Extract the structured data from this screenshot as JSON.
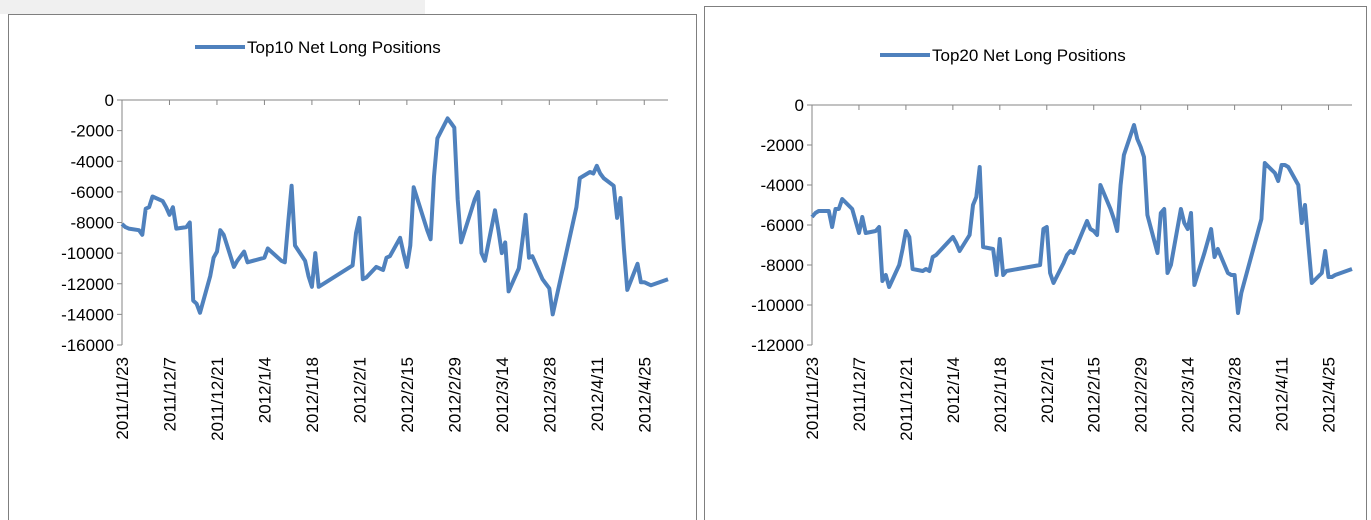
{
  "chart_data": [
    {
      "type": "line",
      "legend": "top",
      "x": [
        "2011/11/23",
        "2011/11/24",
        "2011/11/25",
        "2011/11/28",
        "2011/11/29",
        "2011/11/30",
        "2011/12/1",
        "2011/12/2",
        "2011/12/5",
        "2011/12/6",
        "2011/12/7",
        "2011/12/8",
        "2011/12/9",
        "2011/12/12",
        "2011/12/13",
        "2011/12/14",
        "2011/12/15",
        "2011/12/16",
        "2011/12/19",
        "2011/12/20",
        "2011/12/21",
        "2011/12/22",
        "2011/12/23",
        "2011/12/26",
        "2011/12/27",
        "2011/12/28",
        "2011/12/29",
        "2011/12/30",
        "2012/1/4",
        "2012/1/5",
        "2012/1/6",
        "2012/1/9",
        "2012/1/10",
        "2012/1/11",
        "2012/1/12",
        "2012/1/13",
        "2012/1/16",
        "2012/1/17",
        "2012/1/18",
        "2012/1/19",
        "2012/1/20",
        "2012/1/30",
        "2012/1/31",
        "2012/2/1",
        "2012/2/2",
        "2012/2/3",
        "2012/2/6",
        "2012/2/7",
        "2012/2/8",
        "2012/2/9",
        "2012/2/10",
        "2012/2/13",
        "2012/2/14",
        "2012/2/15",
        "2012/2/16",
        "2012/2/17",
        "2012/2/20",
        "2012/2/21",
        "2012/2/22",
        "2012/2/23",
        "2012/2/24",
        "2012/2/27",
        "2012/2/28",
        "2012/2/29",
        "2012/3/1",
        "2012/3/2",
        "2012/3/5",
        "2012/3/6",
        "2012/3/7",
        "2012/3/8",
        "2012/3/9",
        "2012/3/12",
        "2012/3/13",
        "2012/3/14",
        "2012/3/15",
        "2012/3/16",
        "2012/3/19",
        "2012/3/20",
        "2012/3/21",
        "2012/3/22",
        "2012/3/23",
        "2012/3/26",
        "2012/3/27",
        "2012/3/28",
        "2012/3/29",
        "2012/3/30",
        "2012/4/5",
        "2012/4/6",
        "2012/4/9",
        "2012/4/10",
        "2012/4/11",
        "2012/4/12",
        "2012/4/13",
        "2012/4/16",
        "2012/4/17",
        "2012/4/18",
        "2012/4/19",
        "2012/4/20",
        "2012/4/23",
        "2012/4/24",
        "2012/4/25",
        "2012/4/26",
        "2012/4/27",
        "2012/5/2"
      ],
      "series": [
        {
          "name": "Top10 Net Long Positions",
          "color": "#4f81bd",
          "values": [
            -8100,
            -8300,
            -8400,
            -8500,
            -8800,
            -7100,
            -7000,
            -6300,
            -6600,
            -7000,
            -7500,
            -7000,
            -8400,
            -8300,
            -8000,
            -13100,
            -13300,
            -13900,
            -11500,
            -10300,
            -9900,
            -8500,
            -8800,
            -10900,
            -10500,
            -10200,
            -9900,
            -10600,
            -10300,
            -9700,
            -9900,
            -10500,
            -10600,
            -8000,
            -5600,
            -9500,
            -10500,
            -11500,
            -12200,
            -10000,
            -12200,
            -10800,
            -8700,
            -7700,
            -11700,
            -11600,
            -10900,
            -11000,
            -11100,
            -10300,
            -10200,
            -9000,
            -10000,
            -10900,
            -9500,
            -5700,
            -7800,
            -8500,
            -9100,
            -5000,
            -2500,
            -1200,
            -1500,
            -1800,
            -6500,
            -9300,
            -7200,
            -6500,
            -6000,
            -10000,
            -10500,
            -7200,
            -8500,
            -10000,
            -9300,
            -12500,
            -11000,
            -9300,
            -7500,
            -10300,
            -10200,
            -11700,
            -12000,
            -12300,
            -14000,
            -13000,
            -7000,
            -5100,
            -4700,
            -4800,
            -4300,
            -4800,
            -5100,
            -5600,
            -7700,
            -6400,
            -9700,
            -12400,
            -10700,
            -11900,
            -11900,
            -12000,
            -12100,
            -11700
          ]
        }
      ],
      "xlim": [
        "2011/11/23",
        "2012/5/2"
      ],
      "xticks": [
        "2011/11/23",
        "2011/12/7",
        "2011/12/21",
        "2012/1/4",
        "2012/1/18",
        "2012/2/1",
        "2012/2/15",
        "2012/2/29",
        "2012/3/14",
        "2012/3/28",
        "2012/4/11",
        "2012/4/25"
      ],
      "ylim": [
        -16000,
        0
      ],
      "yticks": [
        0,
        -2000,
        -4000,
        -6000,
        -8000,
        -10000,
        -12000,
        -14000,
        -16000
      ]
    },
    {
      "type": "line",
      "legend": "top",
      "x": [
        "2011/11/23",
        "2011/11/24",
        "2011/11/25",
        "2011/11/28",
        "2011/11/29",
        "2011/11/30",
        "2011/12/1",
        "2011/12/2",
        "2011/12/5",
        "2011/12/6",
        "2011/12/7",
        "2011/12/8",
        "2011/12/9",
        "2011/12/12",
        "2011/12/13",
        "2011/12/14",
        "2011/12/15",
        "2011/12/16",
        "2011/12/19",
        "2011/12/20",
        "2011/12/21",
        "2011/12/22",
        "2011/12/23",
        "2011/12/26",
        "2011/12/27",
        "2011/12/28",
        "2011/12/29",
        "2011/12/30",
        "2012/1/4",
        "2012/1/5",
        "2012/1/6",
        "2012/1/9",
        "2012/1/10",
        "2012/1/11",
        "2012/1/12",
        "2012/1/13",
        "2012/1/16",
        "2012/1/17",
        "2012/1/18",
        "2012/1/19",
        "2012/1/20",
        "2012/1/30",
        "2012/1/31",
        "2012/2/1",
        "2012/2/2",
        "2012/2/3",
        "2012/2/6",
        "2012/2/7",
        "2012/2/8",
        "2012/2/9",
        "2012/2/10",
        "2012/2/13",
        "2012/2/14",
        "2012/2/15",
        "2012/2/16",
        "2012/2/17",
        "2012/2/20",
        "2012/2/21",
        "2012/2/22",
        "2012/2/23",
        "2012/2/24",
        "2012/2/27",
        "2012/2/28",
        "2012/2/29",
        "2012/3/1",
        "2012/3/2",
        "2012/3/5",
        "2012/3/6",
        "2012/3/7",
        "2012/3/8",
        "2012/3/9",
        "2012/3/12",
        "2012/3/13",
        "2012/3/14",
        "2012/3/15",
        "2012/3/16",
        "2012/3/19",
        "2012/3/20",
        "2012/3/21",
        "2012/3/22",
        "2012/3/23",
        "2012/3/26",
        "2012/3/27",
        "2012/3/28",
        "2012/3/29",
        "2012/3/30",
        "2012/4/5",
        "2012/4/6",
        "2012/4/9",
        "2012/4/10",
        "2012/4/11",
        "2012/4/12",
        "2012/4/13",
        "2012/4/16",
        "2012/4/17",
        "2012/4/18",
        "2012/4/19",
        "2012/4/20",
        "2012/4/23",
        "2012/4/24",
        "2012/4/25",
        "2012/4/26",
        "2012/4/27",
        "2012/5/2"
      ],
      "series": [
        {
          "name": "Top20 Net Long Positions",
          "color": "#4f81bd",
          "values": [
            -5600,
            -5400,
            -5300,
            -5300,
            -6100,
            -5200,
            -5200,
            -4700,
            -5200,
            -5800,
            -6400,
            -5600,
            -6400,
            -6300,
            -6100,
            -8800,
            -8500,
            -9100,
            -8000,
            -7200,
            -6300,
            -6600,
            -8200,
            -8300,
            -8200,
            -8300,
            -7600,
            -7500,
            -6600,
            -6900,
            -7300,
            -6500,
            -5000,
            -4600,
            -3100,
            -7100,
            -7200,
            -8500,
            -6700,
            -8500,
            -8300,
            -8000,
            -6200,
            -6100,
            -8400,
            -8900,
            -7900,
            -7500,
            -7300,
            -7400,
            -7000,
            -5800,
            -6200,
            -6300,
            -6500,
            -4000,
            -5200,
            -5700,
            -6300,
            -4000,
            -2500,
            -1000,
            -1700,
            -2100,
            -2600,
            -5500,
            -7400,
            -5400,
            -5200,
            -8400,
            -8000,
            -5200,
            -5900,
            -6200,
            -5400,
            -9000,
            -7400,
            -6800,
            -6200,
            -7600,
            -7200,
            -8400,
            -8500,
            -8500,
            -10400,
            -9400,
            -5700,
            -2900,
            -3400,
            -3800,
            -3000,
            -3000,
            -3100,
            -4000,
            -5900,
            -5000,
            -7000,
            -8900,
            -8400,
            -7300,
            -8600,
            -8600,
            -8500,
            -8200
          ]
        }
      ],
      "xlim": [
        "2011/11/23",
        "2012/5/2"
      ],
      "xticks": [
        "2011/11/23",
        "2011/12/7",
        "2011/12/21",
        "2012/1/4",
        "2012/1/18",
        "2012/2/1",
        "2012/2/15",
        "2012/2/29",
        "2012/3/14",
        "2012/3/28",
        "2012/4/11",
        "2012/4/25"
      ],
      "ylim": [
        -12000,
        0
      ],
      "yticks": [
        0,
        -2000,
        -4000,
        -6000,
        -8000,
        -10000,
        -12000
      ]
    }
  ]
}
